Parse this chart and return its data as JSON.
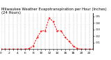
{
  "title_line1": "Milwaukee Weather Evapotranspiration per Hour (Inches)",
  "title_line2": "(24 Hours)",
  "hours": [
    0,
    1,
    2,
    3,
    4,
    5,
    6,
    7,
    8,
    9,
    10,
    11,
    12,
    13,
    14,
    15,
    16,
    17,
    18,
    19,
    20,
    21,
    22,
    23
  ],
  "values": [
    0.0,
    0.0,
    0.0,
    0.0,
    0.0,
    0.0,
    0.0,
    0.001,
    0.005,
    0.018,
    0.028,
    0.028,
    0.048,
    0.042,
    0.028,
    0.028,
    0.018,
    0.012,
    0.005,
    0.001,
    0.0,
    0.0,
    0.0,
    0.0
  ],
  "line_color": "#ff0000",
  "grid_color": "#999999",
  "background_color": "#ffffff",
  "ylim": [
    0,
    0.055
  ],
  "xlim": [
    0,
    23
  ],
  "yticks": [
    0.01,
    0.02,
    0.03,
    0.04,
    0.05
  ],
  "ytick_labels": [
    ".01",
    ".02",
    ".03",
    ".04",
    ".05"
  ],
  "xticks": [
    0,
    1,
    2,
    3,
    4,
    5,
    6,
    7,
    8,
    9,
    10,
    11,
    12,
    13,
    14,
    15,
    16,
    17,
    18,
    19,
    20,
    21,
    22,
    23
  ],
  "title_fontsize": 3.8,
  "tick_fontsize": 3.2,
  "line_width": 0.7
}
